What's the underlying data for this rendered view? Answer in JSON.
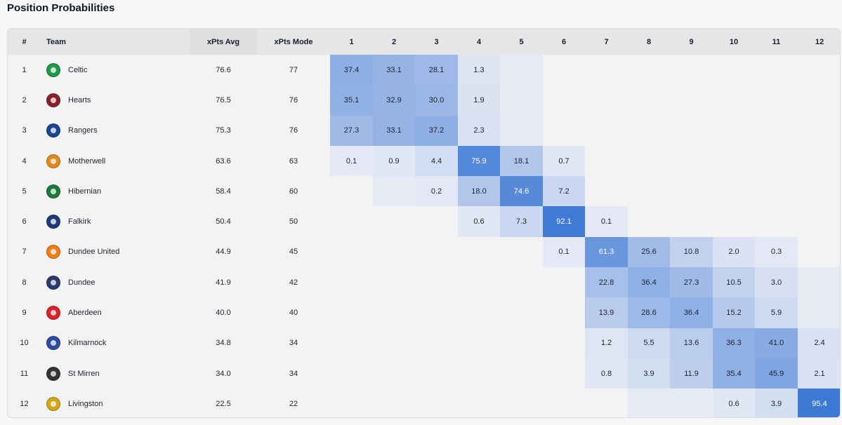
{
  "page_title": "Position Probabilities",
  "header": {
    "rank": "#",
    "team": "Team",
    "xpts_avg": "xPts Avg",
    "xpts_mode": "xPts Mode",
    "positions": [
      "1",
      "2",
      "3",
      "4",
      "5",
      "6",
      "7",
      "8",
      "9",
      "10",
      "11",
      "12"
    ]
  },
  "colors": {
    "heat_low": "#e6eaf5",
    "heat_high": "#3c78d4",
    "header_bg": "#e6e6e8",
    "body_bg": "#f3f3f3"
  },
  "rows": [
    {
      "rank": "1",
      "team": "Celtic",
      "avg": "76.6",
      "mode": "77",
      "badge_icon": "celtic-crest-icon",
      "badge_color": "#1e9a49"
    },
    {
      "rank": "2",
      "team": "Hearts",
      "avg": "76.5",
      "mode": "76",
      "badge_icon": "hearts-crest-icon",
      "badge_color": "#8b1f2c"
    },
    {
      "rank": "3",
      "team": "Rangers",
      "avg": "75.3",
      "mode": "76",
      "badge_icon": "rangers-crest-icon",
      "badge_color": "#1b458f"
    },
    {
      "rank": "4",
      "team": "Motherwell",
      "avg": "63.6",
      "mode": "63",
      "badge_icon": "motherwell-crest-icon",
      "badge_color": "#e3881d"
    },
    {
      "rank": "5",
      "team": "Hibernian",
      "avg": "58.4",
      "mode": "60",
      "badge_icon": "hibernian-crest-icon",
      "badge_color": "#1c7a3c"
    },
    {
      "rank": "6",
      "team": "Falkirk",
      "avg": "50.4",
      "mode": "50",
      "badge_icon": "falkirk-crest-icon",
      "badge_color": "#1f3a74"
    },
    {
      "rank": "7",
      "team": "Dundee United",
      "avg": "44.9",
      "mode": "45",
      "badge_icon": "dundee-united-crest-icon",
      "badge_color": "#f07d18"
    },
    {
      "rank": "8",
      "team": "Dundee",
      "avg": "41.9",
      "mode": "42",
      "badge_icon": "dundee-crest-icon",
      "badge_color": "#2a3a6b"
    },
    {
      "rank": "9",
      "team": "Aberdeen",
      "avg": "40.0",
      "mode": "40",
      "badge_icon": "aberdeen-crest-icon",
      "badge_color": "#d8232a"
    },
    {
      "rank": "10",
      "team": "Kilmarnock",
      "avg": "34.8",
      "mode": "34",
      "badge_icon": "kilmarnock-crest-icon",
      "badge_color": "#2b4d9b"
    },
    {
      "rank": "11",
      "team": "St Mirren",
      "avg": "34.0",
      "mode": "34",
      "badge_icon": "st-mirren-crest-icon",
      "badge_color": "#333333"
    },
    {
      "rank": "12",
      "team": "Livingston",
      "avg": "22.5",
      "mode": "22",
      "badge_icon": "livingston-crest-icon",
      "badge_color": "#d4a617"
    }
  ],
  "chart_data": {
    "type": "heatmap",
    "title": "Position Probabilities",
    "x": [
      "1",
      "2",
      "3",
      "4",
      "5",
      "6",
      "7",
      "8",
      "9",
      "10",
      "11",
      "12"
    ],
    "y": [
      "Celtic",
      "Hearts",
      "Rangers",
      "Motherwell",
      "Hibernian",
      "Falkirk",
      "Dundee United",
      "Dundee",
      "Aberdeen",
      "Kilmarnock",
      "St Mirren",
      "Livingston"
    ],
    "values": [
      [
        37.4,
        33.1,
        28.1,
        1.3,
        0.0,
        null,
        null,
        null,
        null,
        null,
        null,
        null
      ],
      [
        35.1,
        32.9,
        30.0,
        1.9,
        0.0,
        null,
        null,
        null,
        null,
        null,
        null,
        null
      ],
      [
        27.3,
        33.1,
        37.2,
        2.3,
        0.0,
        null,
        null,
        null,
        null,
        null,
        null,
        null
      ],
      [
        0.1,
        0.9,
        4.4,
        75.9,
        18.1,
        0.7,
        null,
        null,
        null,
        null,
        null,
        null
      ],
      [
        null,
        0.0,
        0.2,
        18.0,
        74.6,
        7.2,
        null,
        null,
        null,
        null,
        null,
        null
      ],
      [
        null,
        null,
        null,
        0.6,
        7.3,
        92.1,
        0.1,
        null,
        null,
        null,
        null,
        null
      ],
      [
        null,
        null,
        null,
        null,
        null,
        0.1,
        61.3,
        25.6,
        10.8,
        2.0,
        0.3,
        null
      ],
      [
        null,
        null,
        null,
        null,
        null,
        null,
        22.8,
        36.4,
        27.3,
        10.5,
        3.0,
        0.0
      ],
      [
        null,
        null,
        null,
        null,
        null,
        null,
        13.9,
        28.6,
        36.4,
        15.2,
        5.9,
        0.0
      ],
      [
        null,
        null,
        null,
        null,
        null,
        null,
        1.2,
        5.5,
        13.6,
        36.3,
        41.0,
        2.4
      ],
      [
        null,
        null,
        null,
        null,
        null,
        null,
        0.8,
        3.9,
        11.9,
        35.4,
        45.9,
        2.1
      ],
      [
        null,
        null,
        null,
        null,
        null,
        null,
        null,
        0.0,
        0.0,
        0.6,
        3.9,
        95.4
      ]
    ],
    "value_range": [
      0,
      100
    ]
  }
}
